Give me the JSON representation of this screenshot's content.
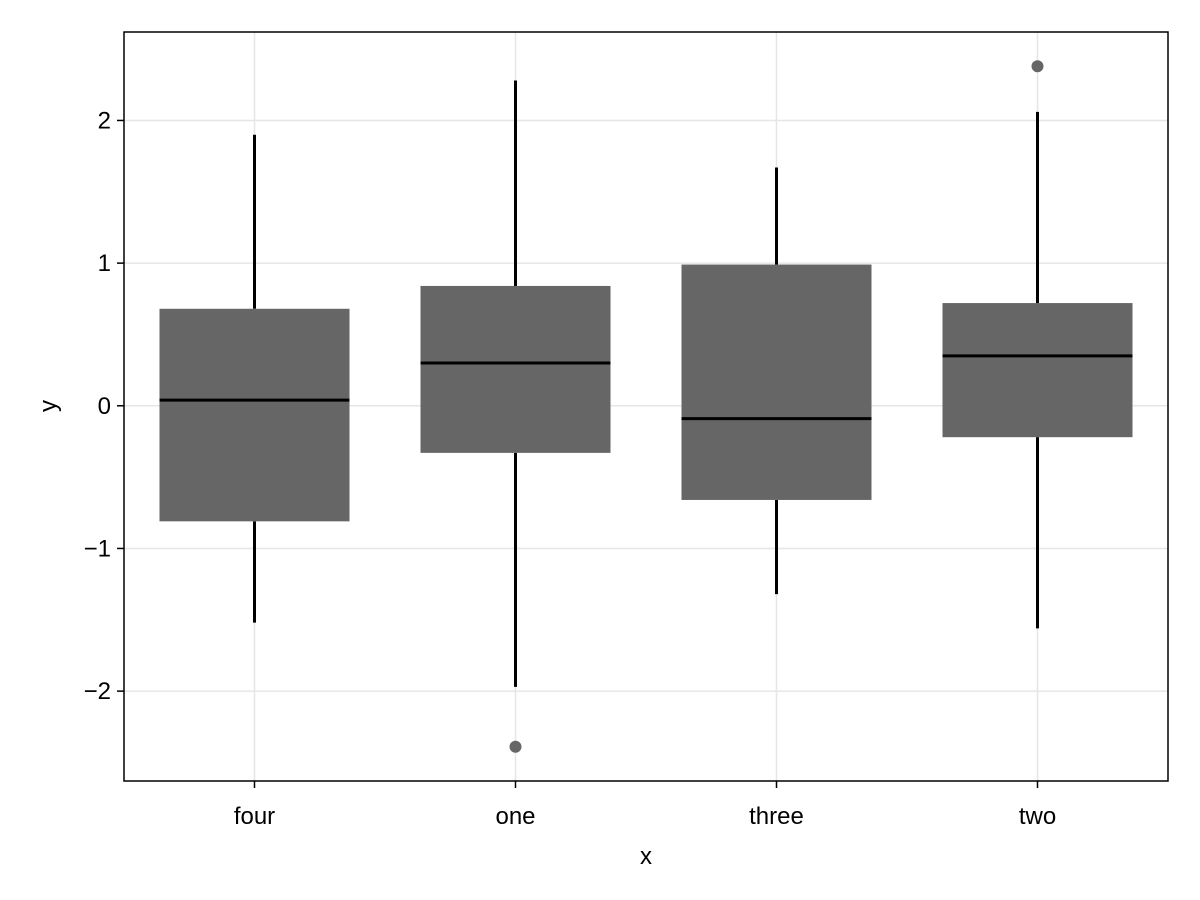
{
  "chart_data": {
    "type": "box",
    "categories": [
      "four",
      "one",
      "three",
      "two"
    ],
    "boxes": [
      {
        "category": "four",
        "whisker_low": -1.52,
        "q1": -0.81,
        "median": 0.04,
        "q3": 0.68,
        "whisker_high": 1.9,
        "outliers": []
      },
      {
        "category": "one",
        "whisker_low": -1.97,
        "q1": -0.33,
        "median": 0.3,
        "q3": 0.84,
        "whisker_high": 2.28,
        "outliers": [
          -2.39
        ]
      },
      {
        "category": "three",
        "whisker_low": -1.32,
        "q1": -0.66,
        "median": -0.09,
        "q3": 0.99,
        "whisker_high": 1.67,
        "outliers": []
      },
      {
        "category": "two",
        "whisker_low": -1.56,
        "q1": -0.22,
        "median": 0.35,
        "q3": 0.72,
        "whisker_high": 2.06,
        "outliers": [
          2.38
        ]
      }
    ],
    "xlabel": "x",
    "ylabel": "y",
    "ylim": [
      -2.63,
      2.62
    ],
    "yticks": [
      -2,
      -1,
      0,
      1,
      2
    ],
    "ytick_labels": [
      "−2",
      "−1",
      "0",
      "1",
      "2"
    ],
    "grid": true,
    "colors": {
      "box": "#666666",
      "line": "#000000",
      "outlier": "#666666",
      "grid": "#e6e6e6",
      "frame": "#000000"
    }
  }
}
